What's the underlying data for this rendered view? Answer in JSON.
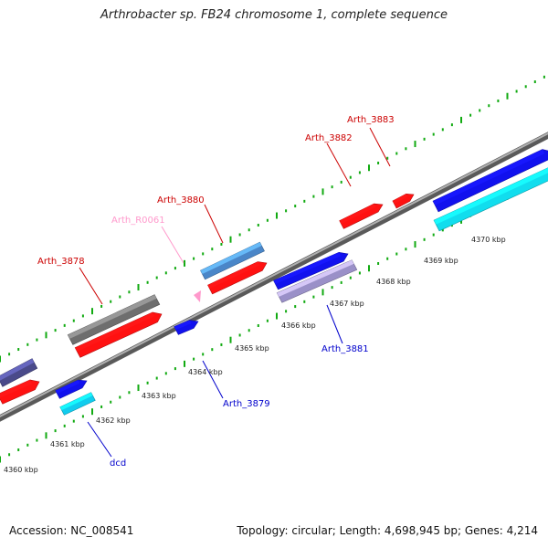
{
  "title": "Arthrobacter sp. FB24 chromosome 1, complete sequence",
  "accession": "Accession: NC_008541",
  "topology": "Topology: circular; Length: 4,698,945 bp; Genes: 4,214",
  "colors": {
    "forward_gene": "#ff1111",
    "reverse_gene": "#1111ee",
    "forward_label": "#cc0000",
    "reverse_label": "#0000cc",
    "rna": "#ff99cc",
    "tick": "#11aa11",
    "backbone": "#888888"
  },
  "scale_labels": [
    "4360 kbp",
    "4361 kbp",
    "4362 kbp",
    "4363 kbp",
    "4364 kbp",
    "4365 kbp",
    "4366 kbp",
    "4367 kbp",
    "4368 kbp",
    "4369 kbp",
    "4370 kbp"
  ],
  "gene_labels": [
    {
      "name": "Arth_3883",
      "strand": "forward"
    },
    {
      "name": "Arth_3882",
      "strand": "forward"
    },
    {
      "name": "Arth_3880",
      "strand": "forward"
    },
    {
      "name": "Arth_R0061",
      "strand": "rna"
    },
    {
      "name": "Arth_3878",
      "strand": "forward"
    },
    {
      "name": "Arth_3881",
      "strand": "reverse"
    },
    {
      "name": "Arth_3879",
      "strand": "reverse"
    },
    {
      "name": "dcd",
      "strand": "reverse"
    }
  ]
}
